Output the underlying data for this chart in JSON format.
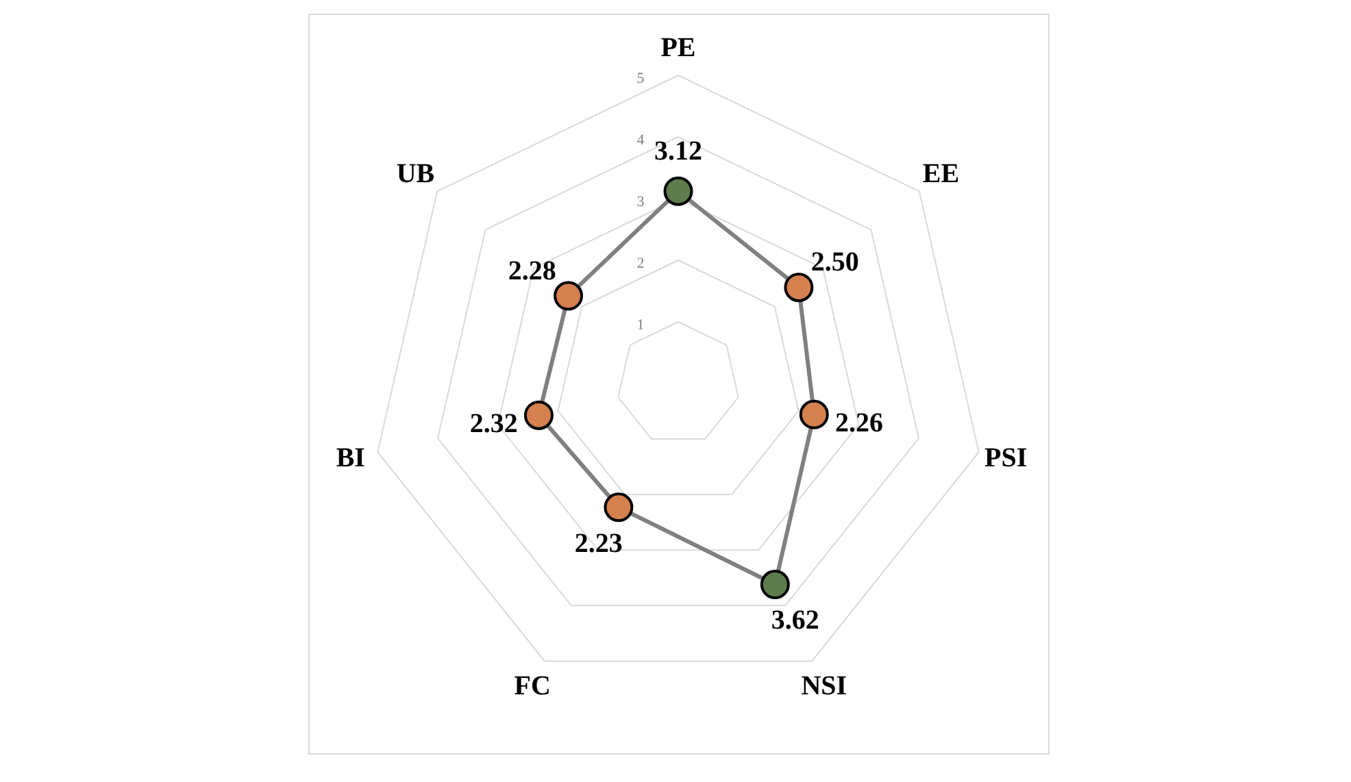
{
  "chart_data": {
    "type": "radar",
    "categories": [
      "PE",
      "EE",
      "PSI",
      "NSI",
      "FC",
      "BI",
      "UB"
    ],
    "series": [
      {
        "color": "#808080",
        "colors": [
          "#5e7c4c",
          "#d4804f",
          "#d4804f",
          "#5e7c4c",
          "#d4804f",
          "#d4804f",
          "#d4804f"
        ],
        "values": [
          3.12,
          2.5,
          2.26,
          3.62,
          2.23,
          2.32,
          2.28
        ],
        "value_labels": [
          "3.12",
          "2.50",
          "2.26",
          "3.62",
          "2.23",
          "2.32",
          "2.28"
        ]
      }
    ],
    "ylim": [
      0,
      5
    ],
    "yticks": [
      1,
      2,
      3,
      4,
      5
    ],
    "grid": true,
    "marker": "circle"
  }
}
